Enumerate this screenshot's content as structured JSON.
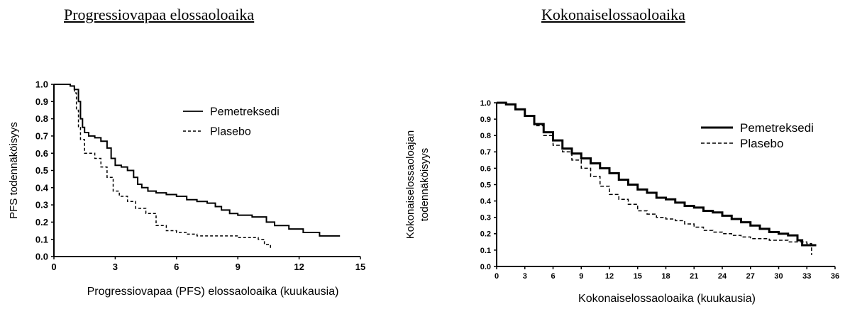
{
  "chart_data": [
    {
      "type": "line",
      "title": "Progressiovapaa elossaoloaika",
      "xlabel": "Progressiovapaa (PFS) elossaoloaika (kuukausia)",
      "ylabel": "PFS  todennäköisyys",
      "xlim": [
        0,
        15
      ],
      "ylim": [
        0,
        1
      ],
      "xticks": [
        "0",
        "3",
        "6",
        "9",
        "12",
        "15"
      ],
      "yticks": [
        "0.0",
        "0.1",
        "0.2",
        "0.3",
        "0.4",
        "0.5",
        "0.6",
        "0.7",
        "0.8",
        "0.9",
        "1.0"
      ],
      "legend_position": "top-right",
      "series": [
        {
          "name": "Pemetreksedi",
          "style": "solid",
          "x": [
            0,
            0.8,
            1.0,
            1.2,
            1.3,
            1.4,
            1.5,
            1.7,
            2.0,
            2.3,
            2.6,
            2.8,
            3.0,
            3.3,
            3.6,
            3.9,
            4.1,
            4.3,
            4.6,
            5.0,
            5.5,
            6.0,
            6.5,
            7.0,
            7.5,
            7.9,
            8.2,
            8.6,
            9.0,
            9.7,
            10.4,
            10.8,
            11.5,
            12.2,
            13.0,
            14.0
          ],
          "y": [
            1.0,
            0.99,
            0.97,
            0.9,
            0.8,
            0.75,
            0.72,
            0.7,
            0.69,
            0.67,
            0.63,
            0.57,
            0.53,
            0.52,
            0.5,
            0.46,
            0.42,
            0.4,
            0.38,
            0.37,
            0.36,
            0.35,
            0.33,
            0.32,
            0.31,
            0.29,
            0.27,
            0.25,
            0.24,
            0.23,
            0.2,
            0.18,
            0.16,
            0.14,
            0.12,
            0.12
          ]
        },
        {
          "name": "Plasebo",
          "style": "dashed",
          "x": [
            0,
            0.8,
            1.0,
            1.1,
            1.2,
            1.3,
            1.5,
            2.0,
            2.3,
            2.6,
            2.9,
            3.2,
            3.6,
            4.0,
            4.5,
            5.0,
            5.5,
            6.0,
            6.5,
            7.0,
            8.0,
            9.0,
            10.0,
            10.3,
            10.6
          ],
          "y": [
            1.0,
            0.99,
            0.95,
            0.85,
            0.75,
            0.68,
            0.6,
            0.57,
            0.52,
            0.46,
            0.38,
            0.35,
            0.32,
            0.28,
            0.25,
            0.18,
            0.15,
            0.14,
            0.13,
            0.12,
            0.12,
            0.11,
            0.1,
            0.07,
            0.04
          ]
        }
      ]
    },
    {
      "type": "line",
      "title": "Kokonaiselossaoloaika",
      "xlabel": "Kokonaiselossaoloaika (kuukausia)",
      "ylabel": "Kokonaiselossaoloajan todennäköisyys",
      "ylabel_lines": [
        "Kokonaiselossaoloajan",
        "todennäköisyys"
      ],
      "xlim": [
        0,
        36
      ],
      "ylim": [
        0,
        1
      ],
      "xticks": [
        "0",
        "3",
        "6",
        "9",
        "12",
        "15",
        "18",
        "21",
        "24",
        "27",
        "30",
        "33",
        "36"
      ],
      "yticks": [
        "0.0",
        "0.1",
        "0.2",
        "0.3",
        "0.4",
        "0.5",
        "0.6",
        "0.7",
        "0.8",
        "0.9",
        "1.0"
      ],
      "legend_position": "top-right",
      "series": [
        {
          "name": "Pemetreksedi",
          "style": "solid",
          "x": [
            0,
            1,
            2,
            3,
            4,
            5,
            6,
            7,
            8,
            9,
            10,
            11,
            12,
            13,
            14,
            15,
            16,
            17,
            18,
            19,
            20,
            21,
            22,
            23,
            24,
            25,
            26,
            27,
            28,
            29,
            30,
            31,
            32,
            32.5,
            33,
            34
          ],
          "y": [
            1.0,
            0.99,
            0.96,
            0.92,
            0.87,
            0.82,
            0.77,
            0.72,
            0.69,
            0.66,
            0.63,
            0.6,
            0.57,
            0.53,
            0.5,
            0.47,
            0.45,
            0.42,
            0.41,
            0.39,
            0.37,
            0.36,
            0.34,
            0.33,
            0.31,
            0.29,
            0.27,
            0.25,
            0.23,
            0.21,
            0.2,
            0.19,
            0.16,
            0.13,
            0.13,
            0.13
          ]
        },
        {
          "name": "Plasebo",
          "style": "dashed",
          "x": [
            0,
            1,
            2,
            3,
            4,
            5,
            6,
            7,
            8,
            9,
            10,
            11,
            12,
            13,
            14,
            15,
            16,
            17,
            18,
            19,
            20,
            21,
            22,
            23,
            24,
            25,
            26,
            27,
            28,
            29,
            30,
            31,
            32,
            33,
            33.5
          ],
          "y": [
            1.0,
            0.99,
            0.96,
            0.92,
            0.86,
            0.8,
            0.74,
            0.7,
            0.65,
            0.6,
            0.55,
            0.49,
            0.44,
            0.41,
            0.38,
            0.34,
            0.32,
            0.3,
            0.29,
            0.28,
            0.26,
            0.24,
            0.22,
            0.21,
            0.2,
            0.19,
            0.18,
            0.17,
            0.17,
            0.16,
            0.16,
            0.15,
            0.15,
            0.14,
            0.07
          ]
        }
      ]
    }
  ]
}
